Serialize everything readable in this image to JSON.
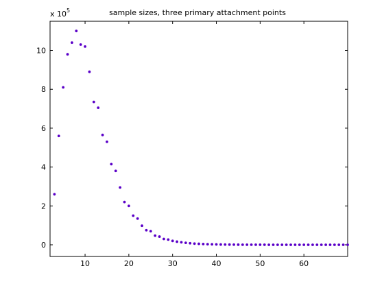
{
  "chart_data": {
    "type": "scatter",
    "title": "sample sizes, three primary attachment points",
    "exponent_label": "x 10",
    "exponent_power": "5",
    "xlim": [
      2,
      70
    ],
    "ylim": [
      -0.6,
      11.5
    ],
    "xticks": [
      10,
      20,
      30,
      40,
      50,
      60
    ],
    "xtick_labels": [
      "10",
      "20",
      "30",
      "40",
      "50",
      "60"
    ],
    "yticks": [
      0,
      2,
      4,
      6,
      8,
      10
    ],
    "ytick_labels": [
      "0",
      "2",
      "4",
      "6",
      "8",
      "10"
    ],
    "grid": false,
    "marker_color": "#5a00c8",
    "series": [
      {
        "x": [
          3,
          4,
          5,
          6,
          7,
          8,
          9,
          10,
          11,
          12,
          13,
          14,
          15,
          16,
          17,
          18,
          19,
          20,
          21,
          22,
          23,
          24,
          25,
          26,
          27,
          28,
          29,
          30,
          31,
          32,
          33,
          34,
          35,
          36,
          37,
          38,
          39,
          40,
          41,
          42,
          43,
          44,
          45,
          46,
          47,
          48,
          49,
          50,
          51,
          52,
          53,
          54,
          55,
          56,
          57,
          58,
          59,
          60,
          61,
          62,
          63,
          64,
          65,
          66,
          67,
          68,
          69,
          70
        ],
        "y": [
          2.6,
          5.6,
          8.1,
          9.8,
          10.4,
          11.0,
          10.3,
          10.2,
          8.9,
          7.35,
          7.05,
          5.65,
          5.3,
          4.15,
          3.8,
          2.95,
          2.2,
          2.0,
          1.5,
          1.35,
          0.98,
          0.75,
          0.7,
          0.47,
          0.42,
          0.3,
          0.27,
          0.2,
          0.16,
          0.13,
          0.1,
          0.08,
          0.06,
          0.05,
          0.04,
          0.03,
          0.025,
          0.02,
          0.015,
          0.012,
          0.01,
          0.008,
          0.006,
          0.005,
          0.004,
          0.003,
          0.003,
          0.002,
          0.002,
          0.001,
          0.001,
          0.001,
          0.001,
          0,
          0,
          0,
          0,
          0,
          0,
          0,
          0,
          0,
          0,
          0,
          0,
          0,
          0,
          0
        ]
      }
    ]
  }
}
